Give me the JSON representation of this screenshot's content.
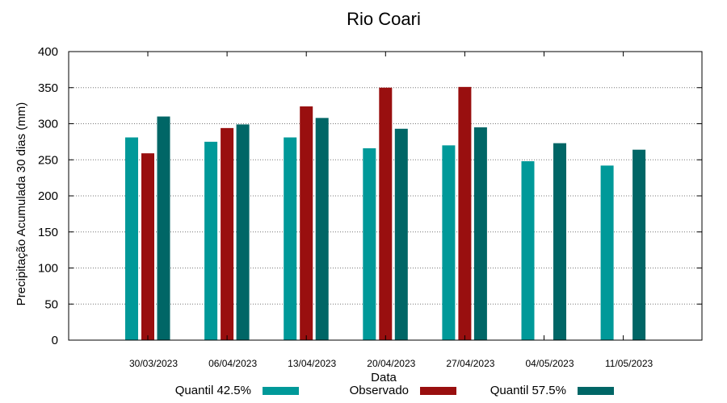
{
  "chart_data": {
    "type": "bar",
    "title": "Rio Coari",
    "xlabel": "Data",
    "ylabel": "Precipitação Acumulada 30 dias (mm)",
    "ylim": [
      0,
      400
    ],
    "yticks": [
      0,
      50,
      100,
      150,
      200,
      250,
      300,
      350,
      400
    ],
    "grid": true,
    "legend_position": "bottom",
    "categories": [
      "30/03/2023",
      "06/04/2023",
      "13/04/2023",
      "20/04/2023",
      "27/04/2023",
      "04/05/2023",
      "11/05/2023"
    ],
    "series": [
      {
        "name": "Quantil 42.5%",
        "color": "#009999",
        "values": [
          281,
          275,
          281,
          266,
          270,
          248,
          242
        ]
      },
      {
        "name": "Observado",
        "color": "#990F0F",
        "values": [
          259,
          294,
          324,
          350,
          351,
          null,
          null
        ]
      },
      {
        "name": "Quantil 57.5%",
        "color": "#006666",
        "values": [
          310,
          299,
          308,
          293,
          295,
          273,
          264
        ]
      }
    ]
  }
}
